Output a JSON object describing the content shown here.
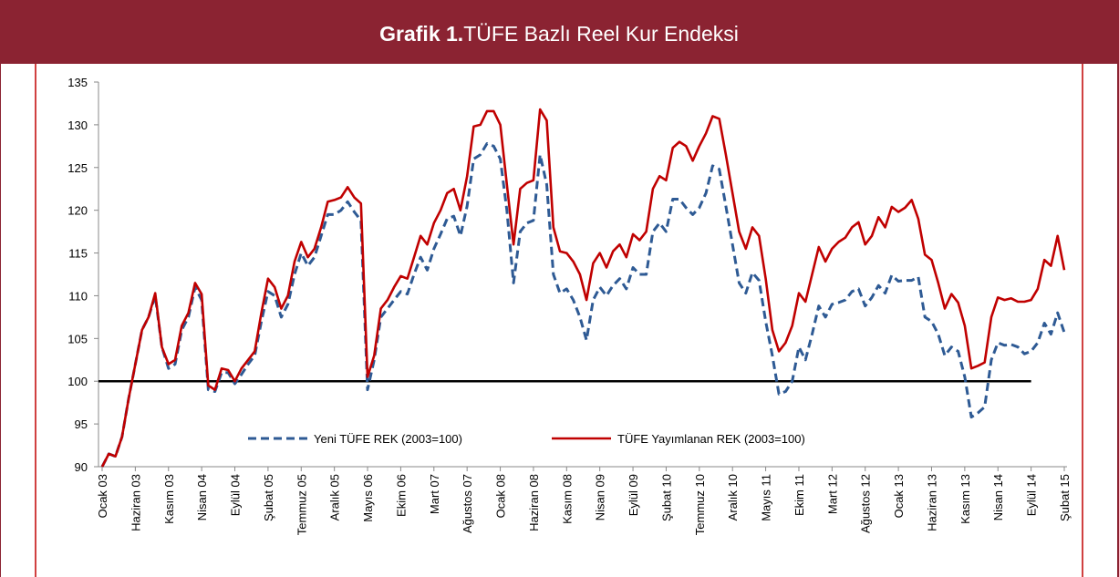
{
  "chart_data": {
    "type": "line",
    "title_bold": "Grafik 1.",
    "title": "TÜFE Bazlı Reel Kur Endeksi",
    "categories": [
      "Ocak 03",
      null,
      null,
      null,
      null,
      "Haziran 03",
      null,
      null,
      null,
      null,
      "Kasım 03",
      null,
      null,
      null,
      null,
      "Nisan 04",
      null,
      null,
      null,
      null,
      "Eylül 04",
      null,
      null,
      null,
      null,
      "Şubat 05",
      null,
      null,
      null,
      null,
      "Temmuz 05",
      null,
      null,
      null,
      null,
      "Aralık 05",
      null,
      null,
      null,
      null,
      "Mayıs 06",
      null,
      null,
      null,
      null,
      "Ekim 06",
      null,
      null,
      null,
      null,
      "Mart 07",
      null,
      null,
      null,
      null,
      "Ağustos 07",
      null,
      null,
      null,
      null,
      "Ocak 08",
      null,
      null,
      null,
      null,
      "Haziran 08",
      null,
      null,
      null,
      null,
      "Kasım 08",
      null,
      null,
      null,
      null,
      "Nisan 09",
      null,
      null,
      null,
      null,
      "Eylül 09",
      null,
      null,
      null,
      null,
      "Şubat 10",
      null,
      null,
      null,
      null,
      "Temmuz 10",
      null,
      null,
      null,
      null,
      "Aralık 10",
      null,
      null,
      null,
      null,
      "Mayıs 11",
      null,
      null,
      null,
      null,
      "Ekim 11",
      null,
      null,
      null,
      null,
      "Mart 12",
      null,
      null,
      null,
      null,
      "Ağustos 12",
      null,
      null,
      null,
      null,
      "Ocak 13",
      null,
      null,
      null,
      null,
      "Haziran 13",
      null,
      null,
      null,
      null,
      "Kasım 13",
      null,
      null,
      null,
      null,
      "Nisan 14",
      null,
      null,
      null,
      null,
      "Eylül 14",
      null,
      null,
      null,
      null,
      "Şubat 15"
    ],
    "series": [
      {
        "name": "Yeni TÜFE REK (2003=100)",
        "color": "#2e5a94",
        "dashed": true,
        "values": [
          90,
          91.5,
          91.2,
          93.5,
          98,
          102,
          106,
          107.5,
          110,
          104,
          101.5,
          102,
          106,
          107.5,
          111,
          109.5,
          99,
          98.8,
          101,
          101,
          99.7,
          100.8,
          102,
          103,
          107,
          110.5,
          110,
          107.5,
          109,
          112.5,
          115,
          113.5,
          114.5,
          117,
          119.5,
          119.5,
          120,
          121,
          119.8,
          118.8,
          99,
          102.5,
          107.5,
          108.5,
          109.5,
          110.5,
          110.2,
          112.5,
          114.5,
          113,
          115.5,
          117.2,
          119,
          119.3,
          117,
          120.5,
          126,
          126.5,
          127.8,
          127.5,
          126,
          120,
          111.5,
          117.5,
          118.5,
          118.8,
          126.5,
          123,
          112.5,
          110.3,
          110.8,
          109.5,
          107.5,
          104.8,
          109.5,
          111,
          110,
          111.2,
          112,
          110.8,
          113.3,
          112.5,
          112.5,
          117.5,
          118.5,
          117.5,
          121.3,
          121.3,
          120.3,
          119.5,
          120.3,
          122,
          125.2,
          124.8,
          120.5,
          116,
          111.5,
          110.3,
          112.7,
          111.8,
          107,
          103,
          98.5,
          98.8,
          100,
          104,
          102.5,
          105.5,
          108.8,
          107.5,
          109,
          109.2,
          109.5,
          110.5,
          110.8,
          108.8,
          109.8,
          111.2,
          110.3,
          112.4,
          111.7,
          111.8,
          111.8,
          112.2,
          107.5,
          107,
          105.5,
          103,
          104,
          103.5,
          100.5,
          95.8,
          96.3,
          97,
          102.5,
          104.5,
          104.2,
          104.3,
          104,
          103.2,
          103.5,
          104.5,
          106.8,
          105.5,
          108,
          105.7
        ]
      },
      {
        "name": "TÜFE Yayımlanan REK (2003=100)",
        "color": "#c00000",
        "dashed": false,
        "values": [
          90,
          91.5,
          91.2,
          93.5,
          98,
          102,
          106,
          107.5,
          110.3,
          104,
          102,
          102.5,
          106.5,
          108,
          111.5,
          110.2,
          99.5,
          99,
          101.5,
          101.3,
          100,
          101.5,
          102.5,
          103.5,
          108,
          112,
          111,
          108.5,
          110,
          114,
          116.3,
          114.5,
          115.5,
          118,
          121,
          121.2,
          121.5,
          122.7,
          121.5,
          120.8,
          100.5,
          103,
          108.5,
          109.5,
          111,
          112.3,
          112,
          114.5,
          117,
          116,
          118.5,
          120,
          122,
          122.5,
          120,
          124,
          129.8,
          130,
          131.6,
          131.6,
          130,
          123,
          116,
          122.5,
          123.2,
          123.5,
          131.8,
          130.5,
          118,
          115.2,
          115,
          114,
          112.5,
          109.5,
          113.8,
          115,
          113.3,
          115.2,
          116,
          114.5,
          117.2,
          116.5,
          117.5,
          122.5,
          124,
          123.5,
          127.3,
          128,
          127.5,
          125.8,
          127.5,
          129,
          131,
          130.7,
          126.5,
          122,
          117.5,
          115.5,
          118,
          117,
          112,
          106,
          103.5,
          104.5,
          106.5,
          110.3,
          109.3,
          112.5,
          115.7,
          114,
          115.5,
          116.3,
          116.8,
          118,
          118.6,
          116,
          117,
          119.2,
          118,
          120.4,
          119.8,
          120.3,
          121.2,
          119,
          114.8,
          114.2,
          111.5,
          108.5,
          110.2,
          109.2,
          106.5,
          101.5,
          101.8,
          102.2,
          107.5,
          109.8,
          109.5,
          109.7,
          109.3,
          109.3,
          109.5,
          110.8,
          114.2,
          113.5,
          117,
          113
        ]
      }
    ],
    "hline": 100,
    "ylim": [
      90,
      135
    ],
    "yticks": [
      90,
      95,
      100,
      105,
      110,
      115,
      120,
      125,
      130,
      135
    ],
    "grid": false
  }
}
